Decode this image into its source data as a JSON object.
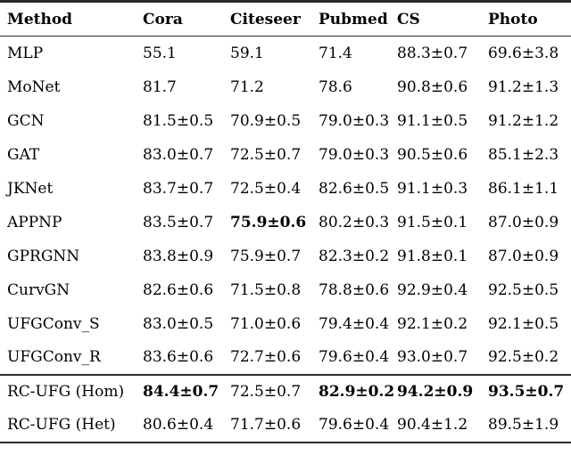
{
  "table": {
    "columns": [
      {
        "key": "method",
        "label": "Method"
      },
      {
        "key": "cora",
        "label": "Cora"
      },
      {
        "key": "citeseer",
        "label": "Citeseer"
      },
      {
        "key": "pubmed",
        "label": "Pubmed"
      },
      {
        "key": "cs",
        "label": "CS"
      },
      {
        "key": "photo",
        "label": "Photo"
      }
    ],
    "rows": [
      {
        "method": "MLP",
        "values": [
          "55.1",
          "59.1",
          "71.4",
          "88.3±0.7",
          "69.6±3.8"
        ],
        "bold": [],
        "separator_before": false
      },
      {
        "method": "MoNet",
        "values": [
          "81.7",
          "71.2",
          "78.6",
          "90.8±0.6",
          "91.2±1.3"
        ],
        "bold": [],
        "separator_before": false
      },
      {
        "method": "GCN",
        "values": [
          "81.5±0.5",
          "70.9±0.5",
          "79.0±0.3",
          "91.1±0.5",
          "91.2±1.2"
        ],
        "bold": [],
        "separator_before": false
      },
      {
        "method": "GAT",
        "values": [
          "83.0±0.7",
          "72.5±0.7",
          "79.0±0.3",
          "90.5±0.6",
          "85.1±2.3"
        ],
        "bold": [],
        "separator_before": false
      },
      {
        "method": "JKNet",
        "values": [
          "83.7±0.7",
          "72.5±0.4",
          "82.6±0.5",
          "91.1±0.3",
          "86.1±1.1"
        ],
        "bold": [],
        "separator_before": false
      },
      {
        "method": "APPNP",
        "values": [
          "83.5±0.7",
          "75.9±0.6",
          "80.2±0.3",
          "91.5±0.1",
          "87.0±0.9"
        ],
        "bold": [
          1
        ],
        "separator_before": false
      },
      {
        "method": "GPRGNN",
        "values": [
          "83.8±0.9",
          "75.9±0.7",
          "82.3±0.2",
          "91.8±0.1",
          "87.0±0.9"
        ],
        "bold": [],
        "separator_before": false
      },
      {
        "method": "CurvGN",
        "values": [
          "82.6±0.6",
          "71.5±0.8",
          "78.8±0.6",
          "92.9±0.4",
          "92.5±0.5"
        ],
        "bold": [],
        "separator_before": false
      },
      {
        "method": "UFGConv_S",
        "values": [
          "83.0±0.5",
          "71.0±0.6",
          "79.4±0.4",
          "92.1±0.2",
          "92.1±0.5"
        ],
        "bold": [],
        "separator_before": false
      },
      {
        "method": "UFGConv_R",
        "values": [
          "83.6±0.6",
          "72.7±0.6",
          "79.6±0.4",
          "93.0±0.7",
          "92.5±0.2"
        ],
        "bold": [],
        "separator_before": false
      },
      {
        "method": "RC-UFG (Hom)",
        "values": [
          "84.4±0.7",
          "72.5±0.7",
          "82.9±0.2",
          "94.2±0.9",
          "93.5±0.7"
        ],
        "bold": [
          0,
          2,
          3,
          4
        ],
        "separator_before": true
      },
      {
        "method": "RC-UFG (Het)",
        "values": [
          "80.6±0.4",
          "71.7±0.6",
          "79.6±0.4",
          "90.4±1.2",
          "89.5±1.9"
        ],
        "bold": [],
        "separator_before": false
      }
    ]
  }
}
